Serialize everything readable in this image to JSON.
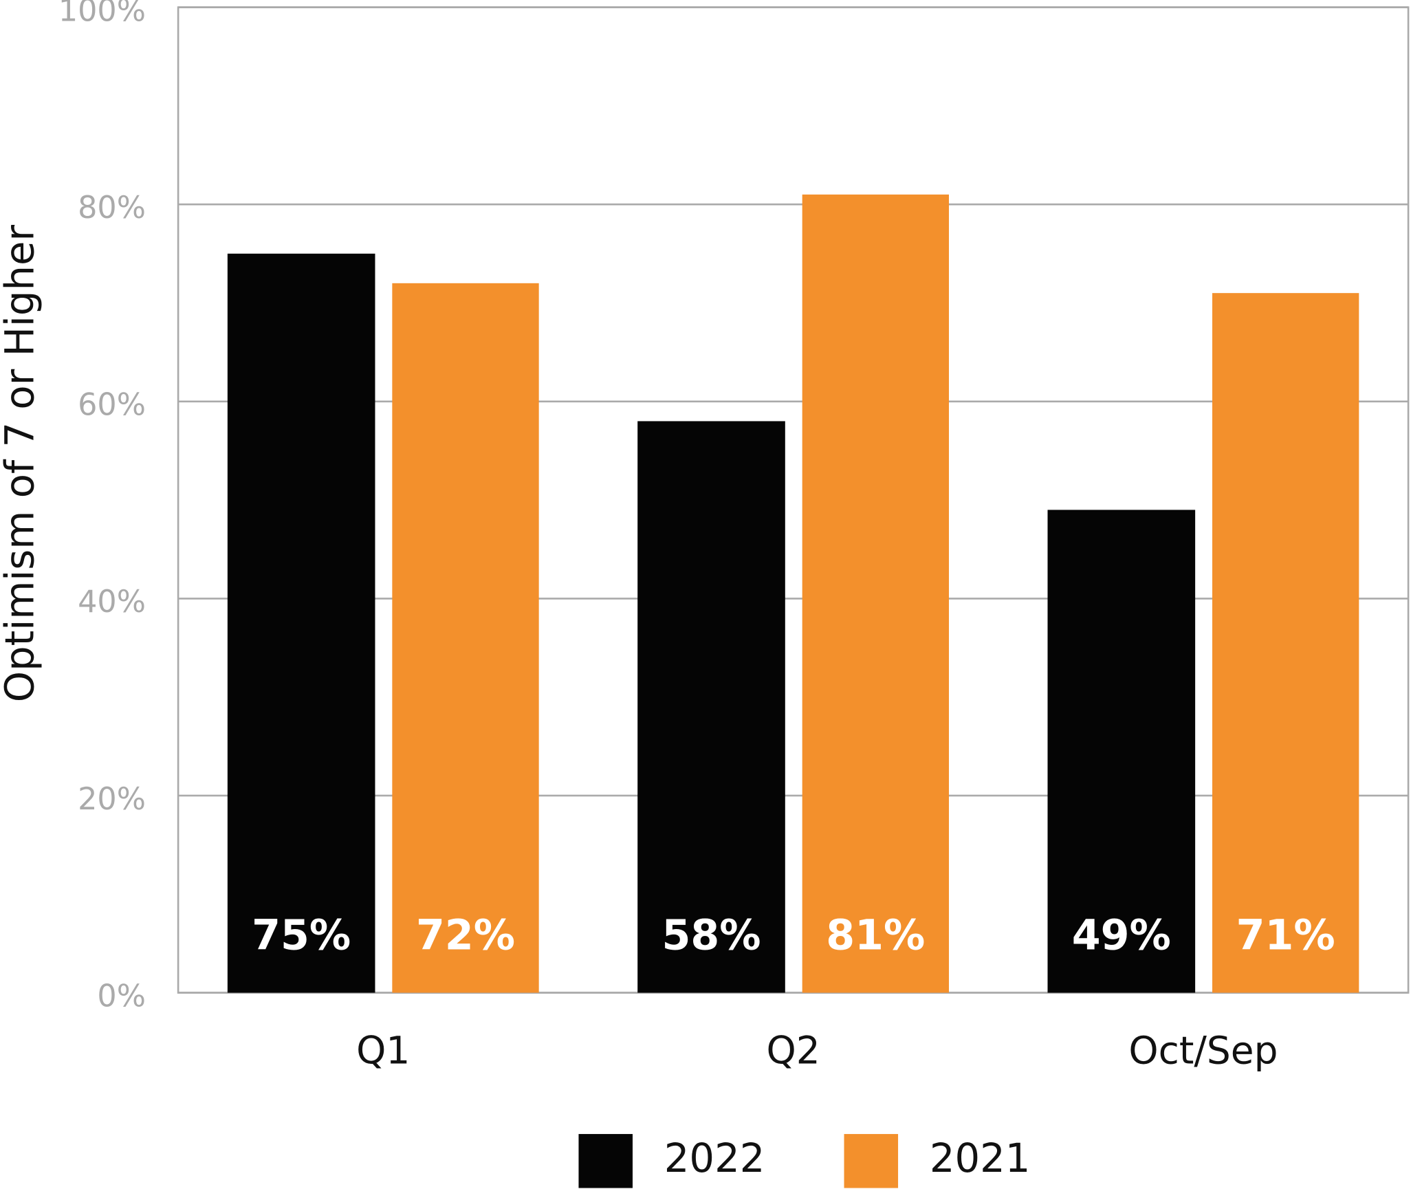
{
  "chart_data": {
    "type": "bar",
    "y_label": "Optimism of 7 or Higher",
    "categories": [
      "Q1",
      "Q2",
      "Oct/Sep"
    ],
    "series": [
      {
        "name": "2022",
        "color": "#050505",
        "values": [
          75,
          58,
          49
        ],
        "value_labels": [
          "75%",
          "58%",
          "49%"
        ]
      },
      {
        "name": "2021",
        "color": "#f3902c",
        "values": [
          72,
          81,
          71
        ],
        "value_labels": [
          "72%",
          "81%",
          "71%"
        ]
      }
    ],
    "ylim": [
      0,
      100
    ],
    "yticks": [
      {
        "value": 0,
        "label": "0%"
      },
      {
        "value": 20,
        "label": "20%"
      },
      {
        "value": 40,
        "label": "40%"
      },
      {
        "value": 60,
        "label": "60%"
      },
      {
        "value": 80,
        "label": "80%"
      },
      {
        "value": 100,
        "label": "100%"
      }
    ],
    "grid": true,
    "legend": "bottom"
  }
}
